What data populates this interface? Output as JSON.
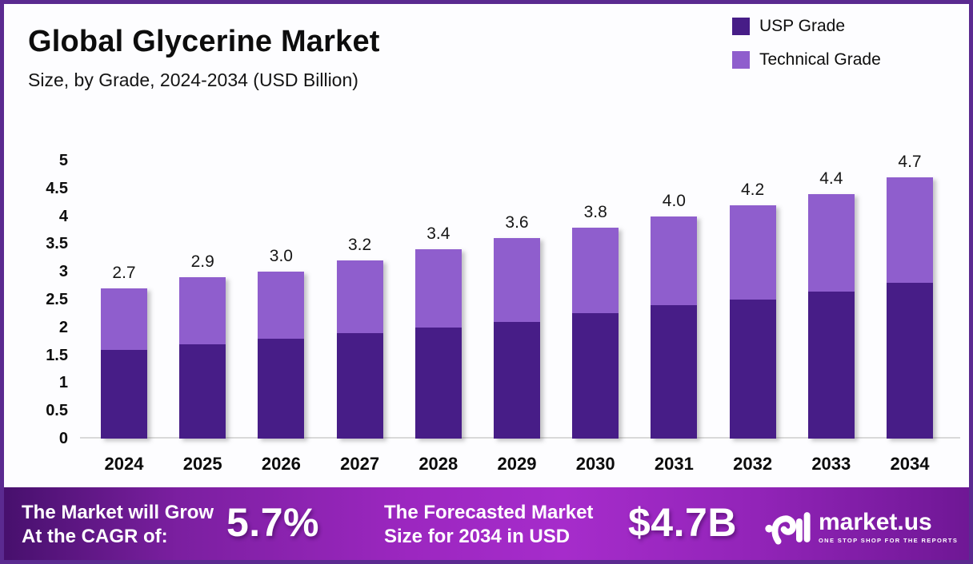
{
  "header": {
    "title": "Global Glycerine Market",
    "subtitle": "Size, by Grade, 2024-2034 (USD Billion)"
  },
  "legend": {
    "position": "top-right",
    "items": [
      {
        "label": "USP Grade",
        "color": "#471d87"
      },
      {
        "label": "Technical Grade",
        "color": "#8f5ecd"
      }
    ]
  },
  "chart_data": {
    "type": "bar",
    "stacked": true,
    "title": "Global Glycerine Market",
    "subtitle": "Size, by Grade, 2024-2034 (USD Billion)",
    "value_unit": "USD Billion",
    "categories": [
      "2024",
      "2025",
      "2026",
      "2027",
      "2028",
      "2029",
      "2030",
      "2031",
      "2032",
      "2033",
      "2034"
    ],
    "series": [
      {
        "name": "USP Grade",
        "color": "#471d87",
        "values": [
          1.6,
          1.7,
          1.8,
          1.9,
          2.0,
          2.1,
          2.25,
          2.4,
          2.5,
          2.65,
          2.8
        ]
      },
      {
        "name": "Technical Grade",
        "color": "#8f5ecd",
        "values": [
          1.1,
          1.2,
          1.2,
          1.3,
          1.4,
          1.5,
          1.55,
          1.6,
          1.7,
          1.75,
          1.9
        ]
      }
    ],
    "totals": [
      2.7,
      2.9,
      3.0,
      3.2,
      3.4,
      3.6,
      3.8,
      4.0,
      4.2,
      4.4,
      4.7
    ],
    "total_labels": [
      "2.7",
      "2.9",
      "3.0",
      "3.2",
      "3.4",
      "3.6",
      "3.8",
      "4.0",
      "4.2",
      "4.4",
      "4.7"
    ],
    "ylim": [
      0,
      5
    ],
    "yticks": [
      "0",
      "0.5",
      "1",
      "1.5",
      "2",
      "2.5",
      "3",
      "3.5",
      "4",
      "4.5",
      "5"
    ],
    "grid": false,
    "legend_position": "top-right"
  },
  "footer": {
    "cagr_line1": "The Market will Grow",
    "cagr_line2": "At the CAGR of:",
    "cagr_value": "5.7%",
    "forecast_line1": "The Forecasted Market",
    "forecast_line2": "Size for 2034 in USD",
    "forecast_value": "$4.7B",
    "brand": {
      "name": "market.us",
      "tagline": "ONE STOP SHOP FOR THE REPORTS"
    }
  },
  "colors": {
    "border": "#5b2a90",
    "background": "#fdfdff",
    "usp_grade": "#471d87",
    "technical_grade": "#8f5ecd",
    "baseline": "#d9d9d9",
    "footer_gradient_start": "#47106d",
    "footer_gradient_mid": "#a62ccb",
    "footer_gradient_end": "#6f1795"
  }
}
